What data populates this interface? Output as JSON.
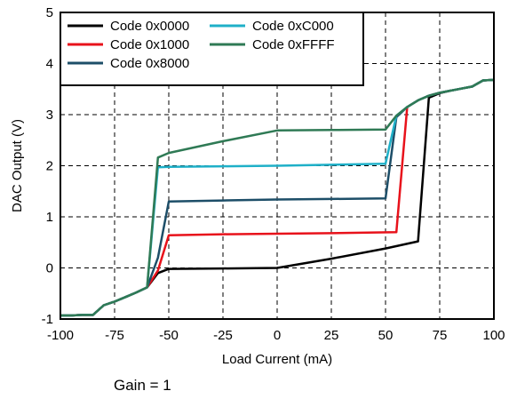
{
  "chart_data": {
    "type": "line",
    "title": "",
    "xlabel": "Load Current (mA)",
    "ylabel": "DAC Output (V)",
    "xlim": [
      -100,
      100
    ],
    "ylim": [
      -1,
      5
    ],
    "xticks": [
      -100,
      -75,
      -50,
      -25,
      0,
      25,
      50,
      75,
      100
    ],
    "yticks": [
      -1,
      0,
      1,
      2,
      3,
      4,
      5
    ],
    "grid": true,
    "legend_position": "top-left",
    "legend_columns": 2,
    "series": [
      {
        "name": "Code 0x0000",
        "color": "#000000",
        "x": [
          -100,
          -95,
          -90,
          -85,
          -80,
          -75,
          -70,
          -65,
          -60,
          -55,
          -50,
          -25,
          0,
          25,
          50,
          65,
          70,
          75,
          80,
          85,
          90,
          95,
          100
        ],
        "y": [
          -0.93,
          -0.93,
          -0.92,
          -0.92,
          -0.73,
          -0.66,
          -0.57,
          -0.48,
          -0.38,
          -0.1,
          -0.02,
          -0.01,
          0.0,
          0.18,
          0.38,
          0.52,
          3.33,
          3.42,
          3.47,
          3.51,
          3.55,
          3.67,
          3.68
        ]
      },
      {
        "name": "Code 0x1000",
        "color": "#e8121b",
        "x": [
          -100,
          -95,
          -90,
          -85,
          -80,
          -75,
          -70,
          -65,
          -60,
          -55,
          -50,
          -25,
          0,
          25,
          55,
          60,
          65,
          70,
          75,
          80,
          85,
          90,
          95,
          100
        ],
        "y": [
          -0.93,
          -0.93,
          -0.92,
          -0.92,
          -0.73,
          -0.66,
          -0.57,
          -0.48,
          -0.38,
          -0.05,
          0.64,
          0.66,
          0.67,
          0.68,
          0.7,
          3.15,
          3.28,
          3.37,
          3.43,
          3.47,
          3.51,
          3.55,
          3.67,
          3.68
        ]
      },
      {
        "name": "Code 0x8000",
        "color": "#1d4e68",
        "x": [
          -100,
          -95,
          -90,
          -85,
          -80,
          -75,
          -70,
          -65,
          -60,
          -55,
          -50,
          -25,
          0,
          25,
          50,
          55,
          60,
          65,
          70,
          75,
          80,
          85,
          90,
          95,
          100
        ],
        "y": [
          -0.93,
          -0.93,
          -0.92,
          -0.92,
          -0.73,
          -0.66,
          -0.57,
          -0.48,
          -0.38,
          0.2,
          1.3,
          1.32,
          1.34,
          1.35,
          1.36,
          2.95,
          3.15,
          3.28,
          3.37,
          3.43,
          3.47,
          3.51,
          3.55,
          3.67,
          3.68
        ]
      },
      {
        "name": "Code 0xC000",
        "color": "#1fb0c8",
        "x": [
          -100,
          -95,
          -90,
          -85,
          -80,
          -75,
          -70,
          -65,
          -60,
          -55,
          -50,
          -25,
          0,
          25,
          50,
          55,
          60,
          65,
          70,
          75,
          80,
          85,
          90,
          95,
          100
        ],
        "y": [
          -0.93,
          -0.93,
          -0.92,
          -0.92,
          -0.73,
          -0.66,
          -0.57,
          -0.48,
          -0.38,
          1.97,
          1.98,
          1.99,
          2.0,
          2.02,
          2.04,
          2.98,
          3.15,
          3.28,
          3.37,
          3.43,
          3.47,
          3.51,
          3.55,
          3.67,
          3.68
        ]
      },
      {
        "name": "Code 0xFFFF",
        "color": "#2f7a55",
        "x": [
          -100,
          -95,
          -90,
          -85,
          -80,
          -75,
          -70,
          -65,
          -60,
          -55,
          -50,
          -25,
          0,
          25,
          50,
          55,
          60,
          65,
          70,
          75,
          80,
          85,
          90,
          95,
          100
        ],
        "y": [
          -0.93,
          -0.93,
          -0.92,
          -0.92,
          -0.73,
          -0.66,
          -0.57,
          -0.48,
          -0.38,
          2.16,
          2.25,
          2.48,
          2.69,
          2.7,
          2.71,
          2.98,
          3.15,
          3.28,
          3.37,
          3.43,
          3.47,
          3.51,
          3.55,
          3.67,
          3.68
        ]
      }
    ]
  },
  "caption": "Gain = 1"
}
